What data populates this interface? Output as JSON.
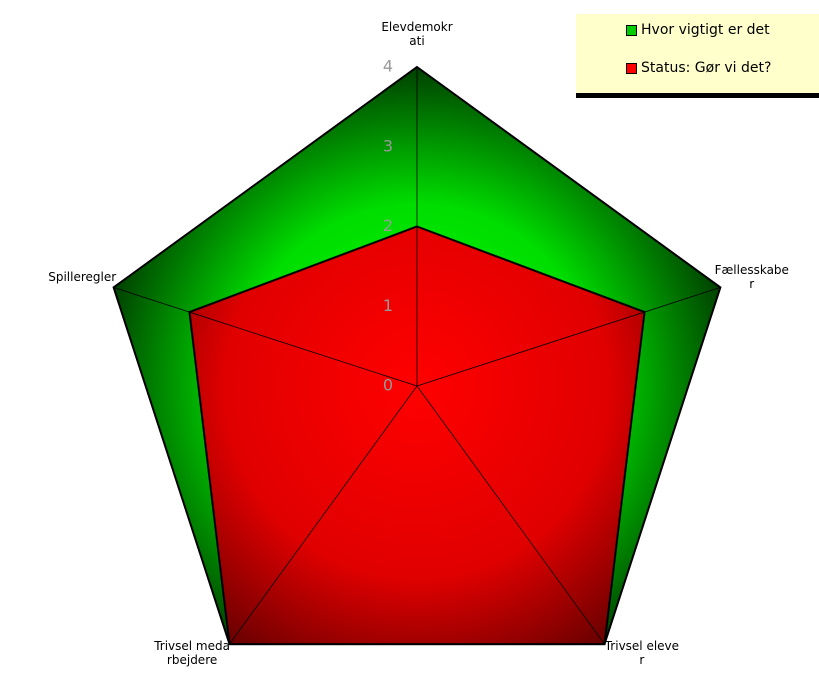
{
  "chart_data": {
    "type": "radar",
    "categories": [
      "Elevdemokrati",
      "Fællesskaber",
      "Trivsel elever",
      "Trivsel medarbejdere",
      "Spilleregler"
    ],
    "series": [
      {
        "name": "Hvor vigtigt er det",
        "color": "#00cc00",
        "values": [
          4,
          4,
          4,
          4,
          4
        ]
      },
      {
        "name": "Status: Gør vi det?",
        "color": "#ff0000",
        "values": [
          2,
          3,
          4,
          4,
          3
        ]
      }
    ],
    "ylim": [
      0,
      4
    ],
    "yticks": [
      0,
      1,
      2,
      3,
      4
    ],
    "legend": "top-right"
  }
}
